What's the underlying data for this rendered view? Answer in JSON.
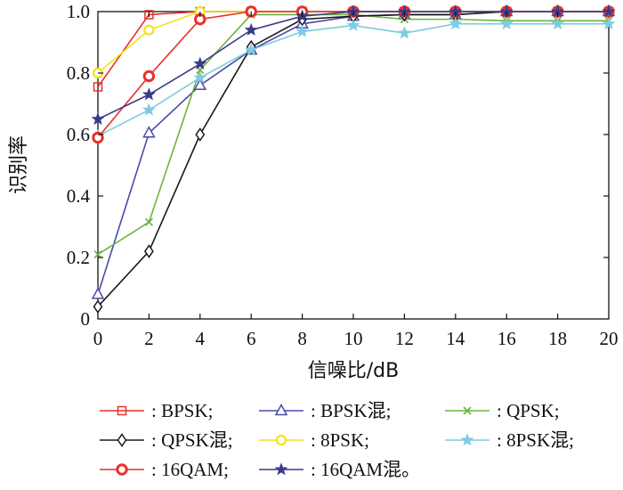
{
  "chart_data": {
    "type": "line",
    "title": "",
    "xlabel": "信噪比/dB",
    "ylabel": "识别率",
    "x": [
      0,
      2,
      4,
      6,
      8,
      10,
      12,
      14,
      16,
      18,
      20
    ],
    "xlim": [
      0,
      20
    ],
    "ylim": [
      0,
      1.0
    ],
    "x_ticks": [
      "0",
      "2",
      "4",
      "6",
      "8",
      "10",
      "12",
      "14",
      "16",
      "18",
      "20"
    ],
    "y_ticks": [
      "0",
      "0.2",
      "0.4",
      "0.6",
      "0.8",
      "1.0"
    ],
    "grid": false,
    "legend_position": "bottom",
    "series": [
      {
        "name": ": BPSK;",
        "color": "#e8312a",
        "marker": "square",
        "values": [
          0.755,
          0.99,
          1.0,
          1.0,
          1.0,
          1.0,
          1.0,
          1.0,
          1.0,
          1.0,
          1.0
        ]
      },
      {
        "name": ": BPSK混;",
        "color": "#4a4aa8",
        "marker": "triangle",
        "values": [
          0.08,
          0.605,
          0.76,
          0.875,
          0.96,
          0.985,
          0.99,
          0.99,
          1.0,
          1.0,
          1.0
        ]
      },
      {
        "name": ": QPSK;",
        "color": "#6cb33e",
        "marker": "x",
        "values": [
          0.21,
          0.315,
          0.81,
          0.99,
          0.99,
          0.99,
          0.975,
          0.975,
          0.97,
          0.97,
          0.97
        ]
      },
      {
        "name": ": QPSK混;",
        "color": "#1a1a1a",
        "marker": "diamond",
        "values": [
          0.04,
          0.22,
          0.6,
          0.885,
          0.975,
          0.985,
          0.99,
          0.99,
          1.0,
          1.0,
          1.0
        ]
      },
      {
        "name": ": 8PSK;",
        "color": "#f2e21a",
        "marker": "circle",
        "values": [
          0.8,
          0.94,
          1.0,
          1.0,
          1.0,
          1.0,
          1.0,
          1.0,
          1.0,
          1.0,
          1.0
        ]
      },
      {
        "name": ": 8PSK混;",
        "color": "#7fcbe0",
        "marker": "star",
        "values": [
          0.595,
          0.68,
          0.785,
          0.875,
          0.935,
          0.955,
          0.93,
          0.96,
          0.96,
          0.96,
          0.96
        ]
      },
      {
        "name": ": 16QAM;",
        "color": "#e8312a",
        "marker": "circle-bold",
        "values": [
          0.59,
          0.79,
          0.975,
          1.0,
          1.0,
          1.0,
          1.0,
          1.0,
          1.0,
          1.0,
          1.0
        ]
      },
      {
        "name": ": 16QAM混。",
        "color": "#3a3a8c",
        "marker": "star",
        "values": [
          0.65,
          0.73,
          0.83,
          0.94,
          0.985,
          1.0,
          1.0,
          1.0,
          1.0,
          1.0,
          1.0
        ]
      }
    ]
  }
}
